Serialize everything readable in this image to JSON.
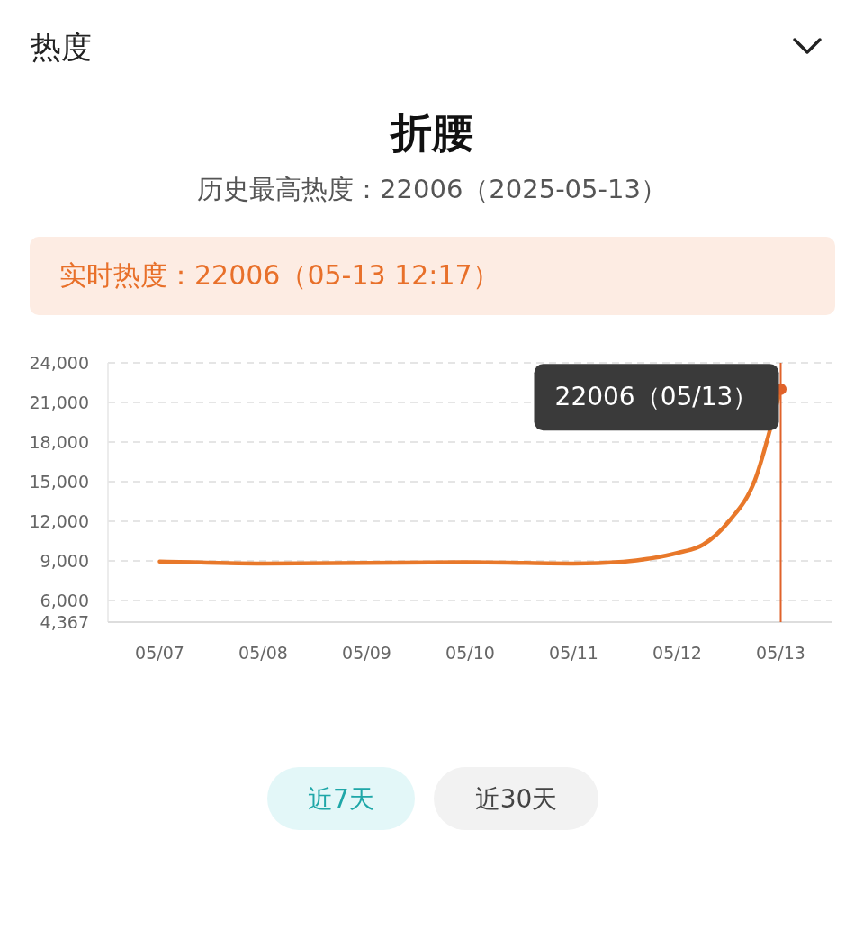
{
  "chart_data": {
    "type": "line",
    "title": "折腰",
    "subtitle": "历史最高热度：22006（2025-05-13）",
    "x": [
      "2025-05-07",
      "2025-05-08",
      "2025-05-09",
      "2025-05-10",
      "2025-05-11",
      "2025-05-11T12:00",
      "2025-05-11T18:00",
      "2025-05-12",
      "2025-05-12T06:00",
      "2025-05-12T12:00",
      "2025-05-12T18:00",
      "2025-05-13"
    ],
    "series": [
      {
        "color": "#e8782a",
        "values": [
          8950,
          8800,
          8850,
          8900,
          8800,
          8950,
          9200,
          9600,
          10230,
          12000,
          15100,
          22006
        ]
      }
    ],
    "xlim": [
      "2025-05-06T12:00",
      "2025-05-13T12:00"
    ],
    "xticks": [
      {
        "value": "2025-05-07",
        "label": "05/07"
      },
      {
        "value": "2025-05-08",
        "label": "05/08"
      },
      {
        "value": "2025-05-09",
        "label": "05/09"
      },
      {
        "value": "2025-05-10",
        "label": "05/10"
      },
      {
        "value": "2025-05-11",
        "label": "05/11"
      },
      {
        "value": "2025-05-12",
        "label": "05/12"
      },
      {
        "value": "2025-05-13",
        "label": "05/13"
      }
    ],
    "ylim": [
      4367,
      24000
    ],
    "yticks": [
      {
        "value": 4367,
        "label": "4,367"
      },
      {
        "value": 6000,
        "label": "6,000"
      },
      {
        "value": 9000,
        "label": "9,000"
      },
      {
        "value": 12000,
        "label": "12,000"
      },
      {
        "value": 15000,
        "label": "15,000"
      },
      {
        "value": 18000,
        "label": "18,000"
      },
      {
        "value": 21000,
        "label": "21,000"
      },
      {
        "value": 24000,
        "label": "24,000"
      }
    ],
    "grid": "y",
    "marker": "none",
    "line_style": "solid",
    "ref_lines": [
      {
        "axis": "x",
        "value": "2025-05-13",
        "color": "#e0622a"
      }
    ],
    "annotations": [
      "热度",
      "实时热度：22006（05-13 12:17）",
      "近7天",
      "近30天",
      {
        "text": "22006（05/13）",
        "x": "2025-05-13",
        "y": 22006
      }
    ]
  }
}
